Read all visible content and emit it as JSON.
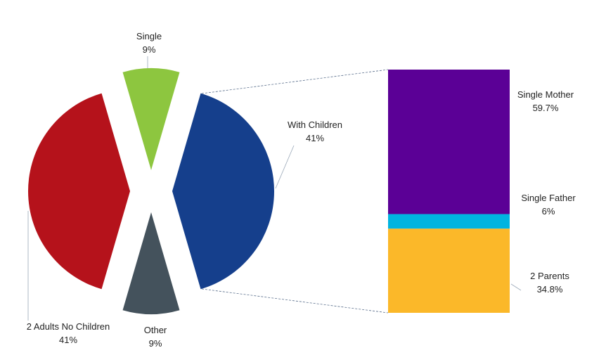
{
  "chart_data": [
    {
      "type": "pie",
      "categories": [
        "Single",
        "With Children",
        "Other",
        "2 Adults No Children"
      ],
      "values": [
        9,
        41,
        9,
        41
      ],
      "value_labels": [
        "9%",
        "41%",
        "9%",
        "41%"
      ],
      "colors": [
        "#8dc63f",
        "#153f8c",
        "#44525c",
        "#b5121b"
      ]
    },
    {
      "type": "bar",
      "categories": [
        "2 Parents",
        "Single Father",
        "Single Mother"
      ],
      "values": [
        34.8,
        6,
        59.7
      ],
      "value_labels": [
        "34.8%",
        "6%",
        "59.7%"
      ],
      "colors": [
        "#fbb829",
        "#00b4e0",
        "#5b0096"
      ]
    }
  ]
}
